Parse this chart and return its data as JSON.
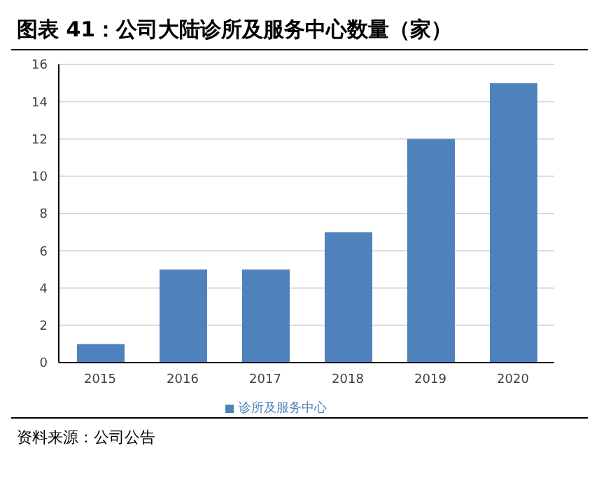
{
  "chart_data": {
    "type": "bar",
    "title": "图表 41：公司大陆诊所及服务中心数量（家）",
    "categories": [
      "2015",
      "2016",
      "2017",
      "2018",
      "2019",
      "2020"
    ],
    "series": [
      {
        "name": "诊所及服务中心",
        "color": "#4f81bd",
        "values": [
          1,
          5,
          5,
          7,
          12,
          15
        ]
      }
    ],
    "ylim": [
      0,
      16
    ],
    "yticks": [
      0,
      2,
      4,
      6,
      8,
      10,
      12,
      14,
      16
    ],
    "grid": "y",
    "legend": "bottom",
    "annotations": [
      "资料来源：公司公告"
    ]
  }
}
